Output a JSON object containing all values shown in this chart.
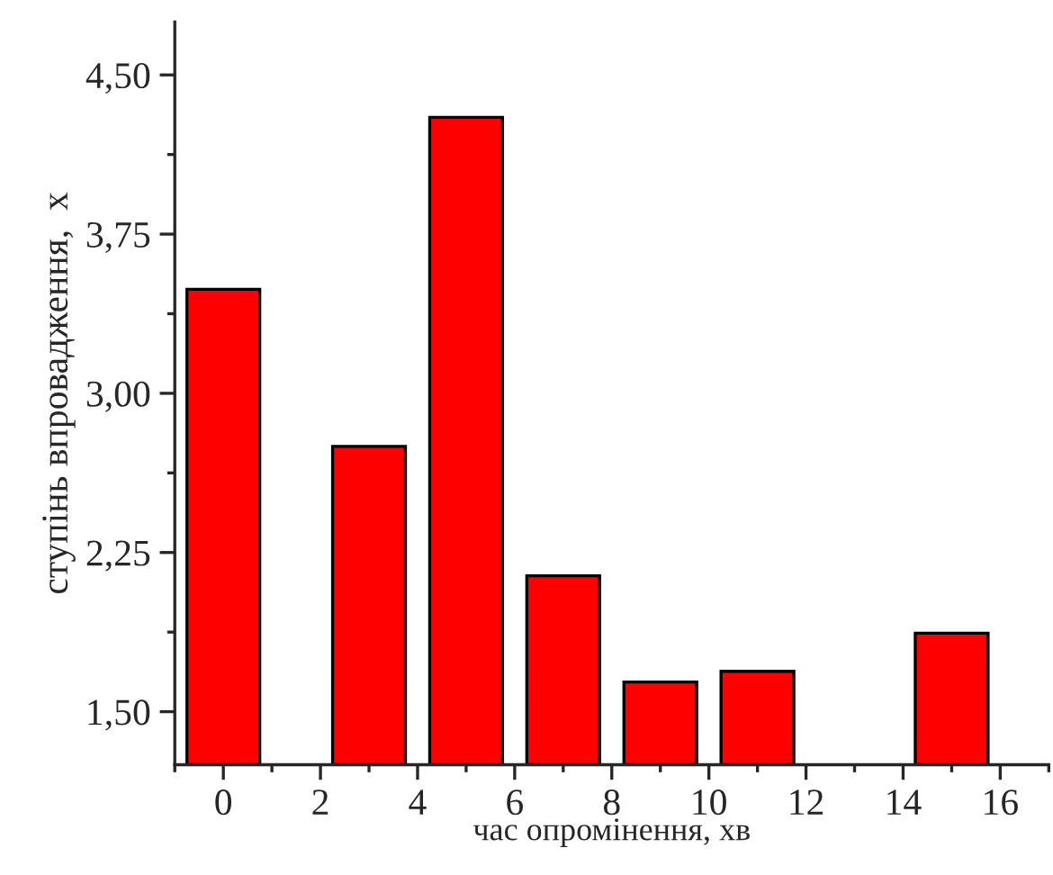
{
  "chart_data": {
    "type": "bar",
    "x": [
      0,
      3,
      5,
      7,
      9,
      11,
      15
    ],
    "values": [
      3.49,
      2.75,
      4.3,
      2.14,
      1.64,
      1.69,
      1.87
    ],
    "color": "#ff0000",
    "xlabel": "час опромінення, хв",
    "ylabel": "ступінь впровадження,  x",
    "xlim": [
      -1,
      17
    ],
    "ylim": [
      1.25,
      4.75
    ],
    "xticks": [
      0,
      2,
      4,
      6,
      8,
      10,
      12,
      14,
      16
    ],
    "yticks": [
      {
        "value": 1.5,
        "label": "1,50"
      },
      {
        "value": 2.25,
        "label": "2,25"
      },
      {
        "value": 3.0,
        "label": "3,00"
      },
      {
        "value": 3.75,
        "label": "3,75"
      },
      {
        "value": 4.5,
        "label": "4,50"
      }
    ],
    "grid": false,
    "legend": false
  }
}
